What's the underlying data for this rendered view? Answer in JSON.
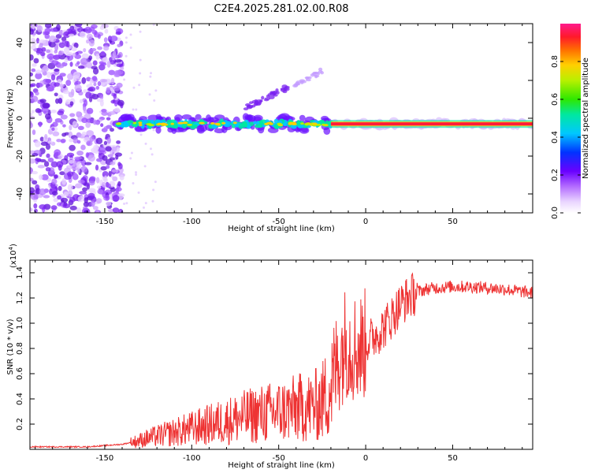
{
  "title": "C2E4.2025.281.02.00.R08",
  "colors": {
    "snr_line": "#ee3333",
    "spectrogram_noise": "#7a2bff",
    "spectrogram_core": "#ff1a3a",
    "background": "#ffffff"
  },
  "chart_data": [
    {
      "type": "heatmap",
      "title": "C2E4.2025.281.02.00.R08",
      "xlabel": "Height of straight line (km)",
      "ylabel": "Frequency (Hz)",
      "xlim": [
        -193,
        96
      ],
      "ylim": [
        -50,
        50
      ],
      "xticks": [
        -150,
        -100,
        -50,
        0,
        50
      ],
      "yticks": [
        -40,
        -20,
        0,
        20,
        40
      ],
      "xtick_labels": [
        "-150",
        "-100",
        "-50",
        "0",
        "50"
      ],
      "ytick_labels": [
        "-40",
        "-20",
        "0",
        "20",
        "40"
      ],
      "description_features": {
        "noise_region_x": [
          -193,
          -140
        ],
        "main_band_frequency": -3,
        "main_band_x": [
          -143,
          96
        ],
        "diagonal_feature_start": [
          -70,
          5
        ],
        "diagonal_feature_end": [
          -25,
          25
        ]
      },
      "colorbar": {
        "label": "Normalized spectral amplitude",
        "range": [
          0,
          1
        ],
        "ticks": [
          0.0,
          0.2,
          0.4,
          0.6,
          0.8
        ],
        "tick_labels": [
          "0.0",
          "0.2",
          "0.4",
          "0.6",
          "0.8"
        ]
      }
    },
    {
      "type": "line",
      "xlabel": "Height of straight line (km)",
      "ylabel": "SNR (10 * v/v)",
      "scale_label": "(x10",
      "scale_exponent": "4",
      "scale_suffix": ")",
      "xlim": [
        -193,
        96
      ],
      "ylim": [
        0,
        1.5
      ],
      "xticks": [
        -150,
        -100,
        -50,
        0,
        50
      ],
      "yticks": [
        0.2,
        0.4,
        0.6,
        0.8,
        1.0,
        1.2,
        1.4
      ],
      "xtick_labels": [
        "-150",
        "-100",
        "-50",
        "0",
        "50"
      ],
      "ytick_labels": [
        "0.2",
        "0.4",
        "0.6",
        "0.8",
        "1.0",
        "1.2",
        "1.4"
      ],
      "series": [
        {
          "name": "SNR",
          "x": [
            -193,
            -180,
            -170,
            -160,
            -150,
            -140,
            -133,
            -125,
            -115,
            -105,
            -95,
            -85,
            -75,
            -65,
            -55,
            -45,
            -38,
            -30,
            -25,
            -20,
            -16,
            -12,
            -8,
            -4,
            0,
            5,
            10,
            15,
            20,
            25,
            30,
            35,
            40,
            50,
            60,
            70,
            80,
            90,
            96
          ],
          "values": [
            0.02,
            0.02,
            0.02,
            0.02,
            0.03,
            0.04,
            0.06,
            0.09,
            0.12,
            0.15,
            0.18,
            0.21,
            0.24,
            0.27,
            0.29,
            0.31,
            0.33,
            0.34,
            0.38,
            0.5,
            0.7,
            0.85,
            0.82,
            0.8,
            0.84,
            0.9,
            0.96,
            1.05,
            1.15,
            1.21,
            1.25,
            1.27,
            1.28,
            1.29,
            1.29,
            1.28,
            1.27,
            1.25,
            1.24
          ]
        }
      ]
    }
  ]
}
